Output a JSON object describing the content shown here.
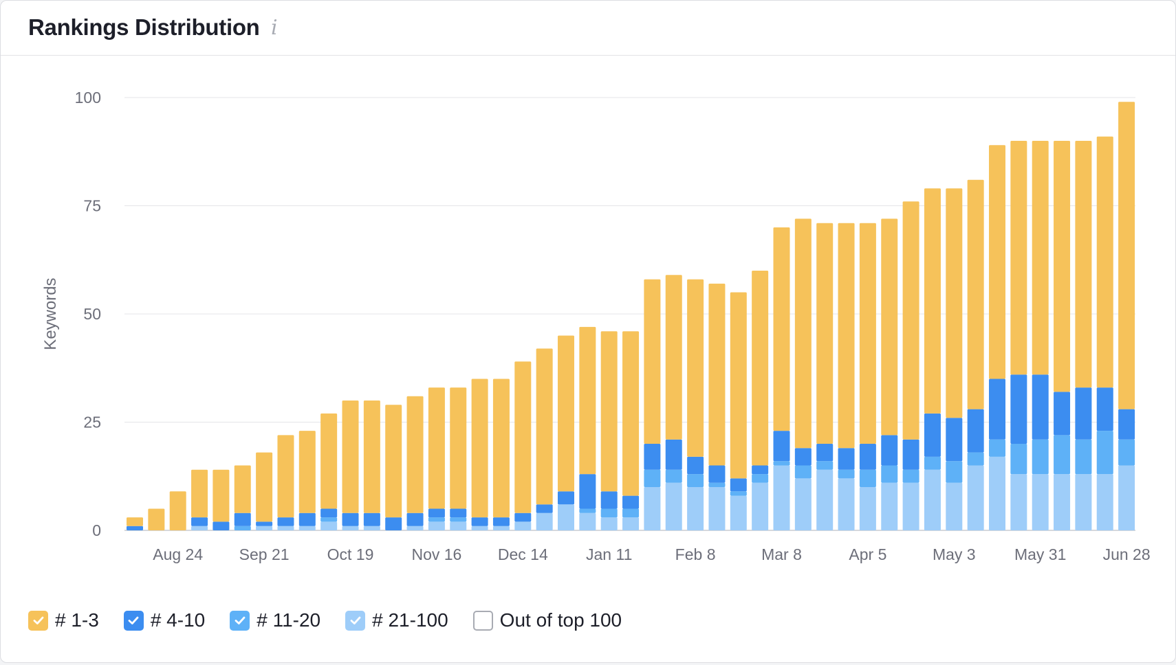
{
  "header": {
    "title": "Rankings Distribution",
    "info_icon": "info-icon"
  },
  "legend": [
    {
      "label": "# 1-3",
      "color": "#f6c25a",
      "checked": true
    },
    {
      "label": "# 4-10",
      "color": "#3c8df0",
      "checked": true
    },
    {
      "label": "# 11-20",
      "color": "#5eb1f7",
      "checked": true
    },
    {
      "label": "# 21-100",
      "color": "#9ecdf9",
      "checked": true
    },
    {
      "label": "Out of top 100",
      "color": "#ffffff",
      "checked": false
    }
  ],
  "chart_data": {
    "type": "bar",
    "stacked": true,
    "ylabel": "Keywords",
    "ylim": [
      0,
      100
    ],
    "yticks": [
      0,
      25,
      50,
      75,
      100
    ],
    "xtick_labels": [
      "Aug 24",
      "Sep 21",
      "Oct 19",
      "Nov 16",
      "Dec 14",
      "Jan 11",
      "Feb 8",
      "Mar 8",
      "Apr 5",
      "May 3",
      "May 31",
      "Jun 28"
    ],
    "xtick_indices": [
      2,
      6,
      10,
      14,
      18,
      22,
      26,
      30,
      34,
      38,
      42,
      46
    ],
    "grid": true,
    "legend_position": "bottom",
    "series": [
      {
        "name": "# 21-100",
        "color": "#9ecdf9",
        "values": [
          0,
          0,
          0,
          1,
          0,
          0,
          1,
          1,
          1,
          2,
          1,
          1,
          0,
          1,
          2,
          2,
          1,
          1,
          2,
          4,
          6,
          4,
          3,
          3,
          10,
          11,
          10,
          10,
          8,
          11,
          15,
          12,
          14,
          12,
          10,
          11,
          11,
          14,
          11,
          15,
          17,
          13,
          13,
          13,
          13,
          13,
          15
        ]
      },
      {
        "name": "# 11-20",
        "color": "#5eb1f7",
        "values": [
          0,
          0,
          0,
          0,
          0,
          1,
          0,
          0,
          0,
          1,
          0,
          0,
          0,
          0,
          1,
          1,
          0,
          0,
          0,
          0,
          0,
          1,
          2,
          2,
          4,
          3,
          3,
          1,
          1,
          2,
          1,
          3,
          2,
          2,
          4,
          4,
          3,
          3,
          5,
          3,
          4,
          7,
          8,
          9,
          8,
          10,
          6
        ]
      },
      {
        "name": "# 4-10",
        "color": "#3c8df0",
        "values": [
          1,
          0,
          0,
          2,
          2,
          3,
          1,
          2,
          3,
          2,
          3,
          3,
          3,
          3,
          2,
          2,
          2,
          2,
          2,
          2,
          3,
          8,
          4,
          3,
          6,
          7,
          4,
          4,
          3,
          2,
          7,
          4,
          4,
          5,
          6,
          7,
          7,
          10,
          10,
          10,
          14,
          16,
          15,
          10,
          12,
          10,
          7
        ]
      },
      {
        "name": "# 1-3",
        "color": "#f6c25a",
        "values": [
          2,
          5,
          9,
          11,
          12,
          11,
          16,
          19,
          19,
          22,
          26,
          26,
          26,
          27,
          28,
          28,
          32,
          32,
          35,
          36,
          36,
          34,
          37,
          38,
          38,
          38,
          41,
          42,
          43,
          45,
          47,
          53,
          51,
          52,
          51,
          50,
          55,
          52,
          53,
          53,
          54,
          54,
          54,
          58,
          57,
          58,
          71
        ]
      }
    ]
  }
}
